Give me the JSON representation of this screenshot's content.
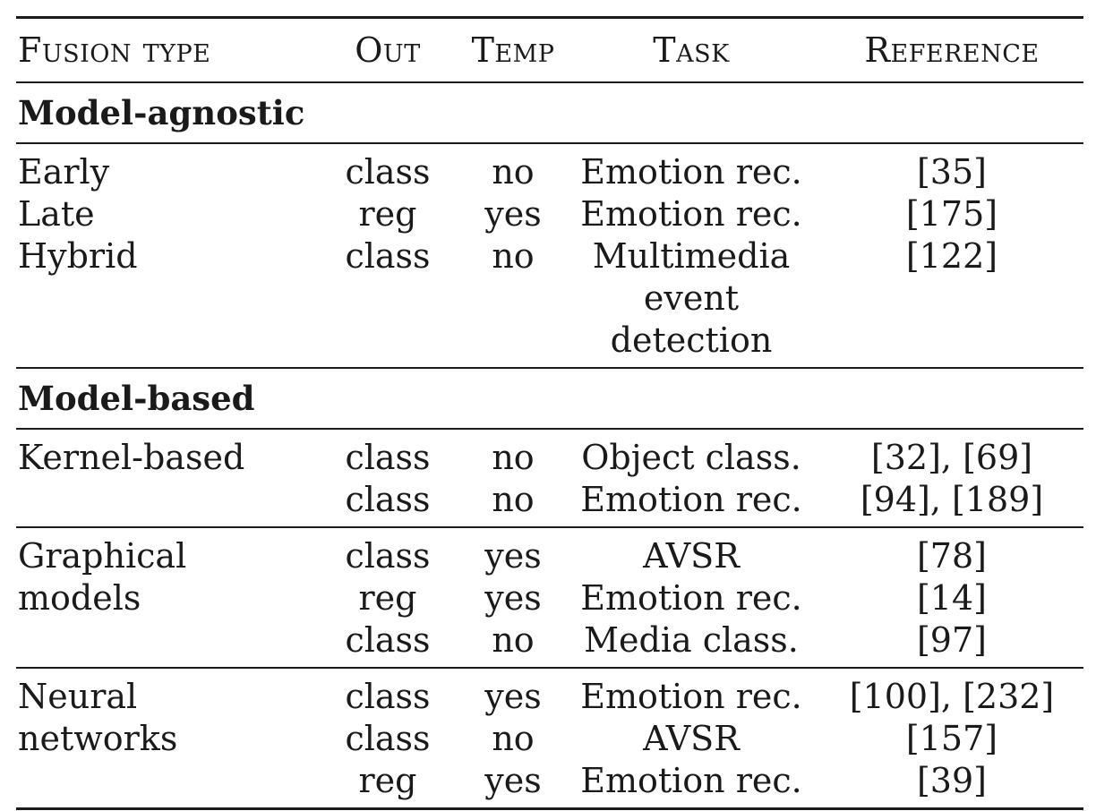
{
  "header": {
    "fusion_type": "Fusion type",
    "out": "Out",
    "temp": "Temp",
    "task": "Task",
    "reference": "Reference"
  },
  "sections": [
    {
      "title": "Model-agnostic",
      "groups": [
        {
          "rows": [
            {
              "fusion": "Early",
              "out": "class",
              "temp": "no",
              "task": "Emotion rec.",
              "ref": "[35]"
            },
            {
              "fusion": "Late",
              "out": "reg",
              "temp": "yes",
              "task": "Emotion rec.",
              "ref": "[175]"
            },
            {
              "fusion": "Hybrid",
              "out": "class",
              "temp": "no",
              "task": "Multimedia",
              "ref": "[122]"
            },
            {
              "fusion": "",
              "out": "",
              "temp": "",
              "task": "event detection",
              "ref": ""
            }
          ]
        }
      ]
    },
    {
      "title": "Model-based",
      "groups": [
        {
          "rows": [
            {
              "fusion": "Kernel-based",
              "out": "class",
              "temp": "no",
              "task": "Object class.",
              "ref": "[32], [69]"
            },
            {
              "fusion": "",
              "out": "class",
              "temp": "no",
              "task": "Emotion rec.",
              "ref": "[94], [189]"
            }
          ]
        },
        {
          "rows": [
            {
              "fusion": "Graphical",
              "out": "class",
              "temp": "yes",
              "task": "AVSR",
              "ref": "[78]"
            },
            {
              "fusion": "models",
              "out": "reg",
              "temp": "yes",
              "task": "Emotion rec.",
              "ref": "[14]"
            },
            {
              "fusion": "",
              "out": "class",
              "temp": "no",
              "task": "Media class.",
              "ref": "[97]"
            }
          ]
        },
        {
          "rows": [
            {
              "fusion": "Neural",
              "out": "class",
              "temp": "yes",
              "task": "Emotion rec.",
              "ref": "[100], [232]"
            },
            {
              "fusion": "networks",
              "out": "class",
              "temp": "no",
              "task": "AVSR",
              "ref": "[157]"
            },
            {
              "fusion": "",
              "out": "reg",
              "temp": "yes",
              "task": "Emotion rec.",
              "ref": "[39]"
            }
          ]
        }
      ]
    }
  ]
}
